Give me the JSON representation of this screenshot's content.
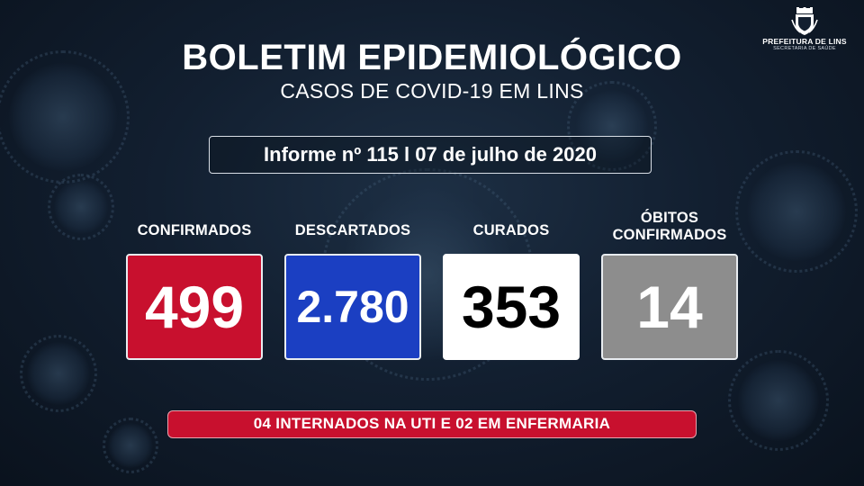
{
  "logo": {
    "icon": "city-coat-of-arms-icon",
    "name": "PREFEITURA DE LINS",
    "department": "SECRETARIA DE SAÚDE"
  },
  "header": {
    "title": "BOLETIM EPIDEMIOLÓGICO",
    "subtitle": "CASOS DE COVID-19 EM LINS"
  },
  "report": {
    "text": "Informe nº 115 l 07 de julho de 2020"
  },
  "stats": [
    {
      "label": "CONFIRMADOS",
      "value": "499",
      "color": "#c8102e"
    },
    {
      "label": "DESCARTADOS",
      "value": "2.780",
      "color": "#1b3fc2"
    },
    {
      "label": "CURADOS",
      "value": "353",
      "color": "#ffffff"
    },
    {
      "label_line1": "ÓBITOS",
      "label_line2": "CONFIRMADOS",
      "value": "14",
      "color": "#8d8d8d"
    }
  ],
  "banner": {
    "text": "04 INTERNADOS NA UTI E 02 EM ENFERMARIA",
    "color": "#c8102e"
  },
  "background": {
    "theme": "dark-blue-virus-pattern",
    "color": "#121f30"
  }
}
